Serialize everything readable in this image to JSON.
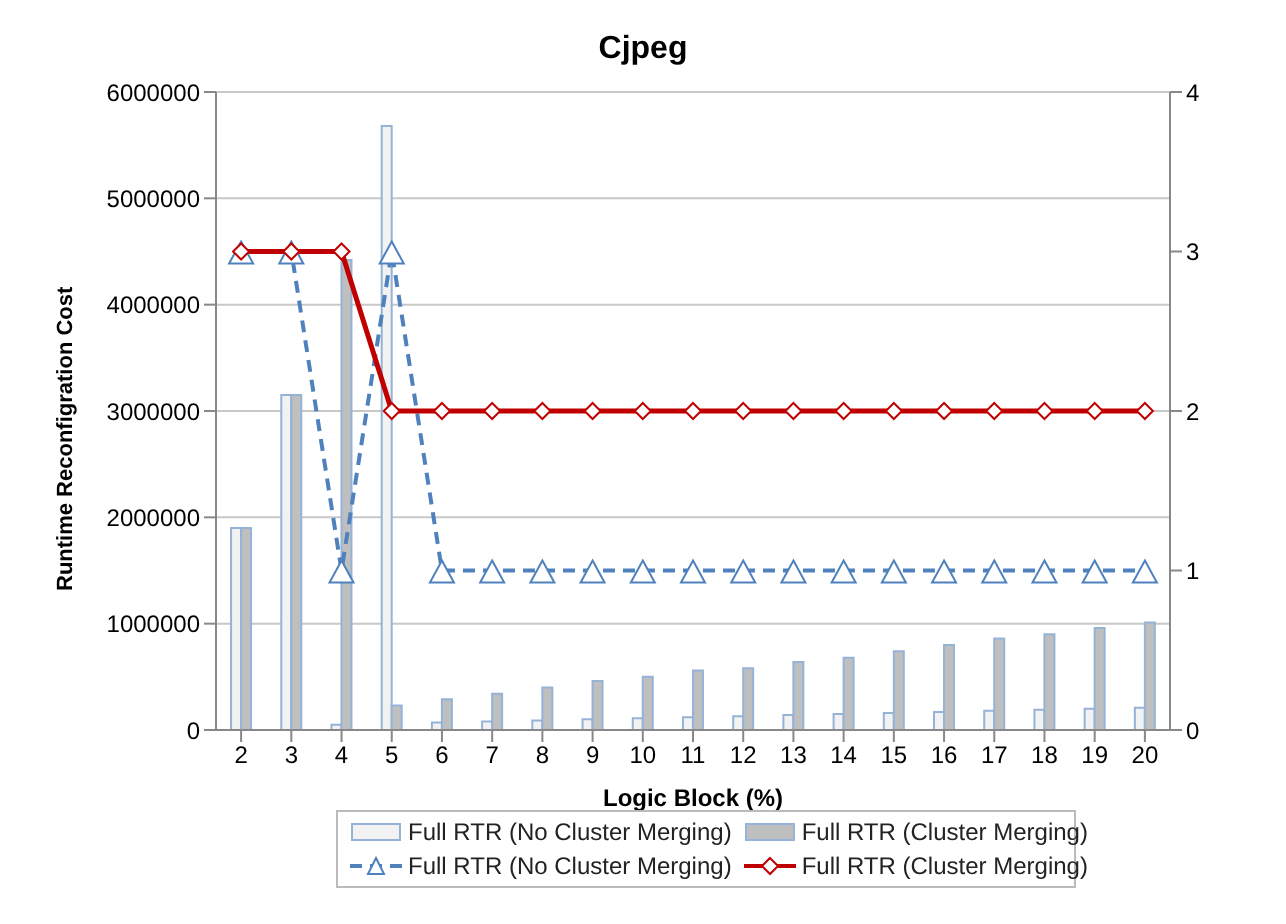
{
  "chart_data": {
    "type": "bar",
    "title": "Cjpeg",
    "xlabel": "Logic Block (%)",
    "ylabel": "Runtime Reconfigration Cost",
    "categories": [
      "2",
      "3",
      "4",
      "5",
      "6",
      "7",
      "8",
      "9",
      "10",
      "11",
      "12",
      "13",
      "14",
      "15",
      "16",
      "17",
      "18",
      "19",
      "20"
    ],
    "series": [
      {
        "name": "Full RTR (No Cluster Merging)",
        "color": "#f2f2f2",
        "values": [
          1900000,
          3150000,
          50000,
          5680000,
          70000,
          80000,
          90000,
          100000,
          110000,
          120000,
          130000,
          140000,
          150000,
          160000,
          170000,
          180000,
          190000,
          200000,
          210000
        ]
      },
      {
        "name": "Full RTR (Cluster Merging)",
        "color": "#bfbfbf",
        "values": [
          1900000,
          3150000,
          4420000,
          230000,
          290000,
          340000,
          400000,
          460000,
          500000,
          560000,
          580000,
          640000,
          680000,
          740000,
          800000,
          860000,
          900000,
          960000,
          1010000
        ]
      },
      {
        "name": "Full RTR (No Cluster Merging)",
        "type": "line",
        "axis": "y2",
        "color": "#4f81bd",
        "marker": "triangle",
        "line_style": "dashed",
        "values": [
          3,
          3,
          1,
          3,
          1,
          1,
          1,
          1,
          1,
          1,
          1,
          1,
          1,
          1,
          1,
          1,
          1,
          1,
          1
        ]
      },
      {
        "name": "Full RTR (Cluster Merging)",
        "type": "line",
        "axis": "y2",
        "color": "#c00000",
        "marker": "diamond",
        "line_style": "solid",
        "values": [
          3,
          3,
          3,
          2,
          2,
          2,
          2,
          2,
          2,
          2,
          2,
          2,
          2,
          2,
          2,
          2,
          2,
          2,
          2
        ]
      }
    ],
    "ylim": [
      0,
      6000000
    ],
    "yticks": [
      0,
      1000000,
      2000000,
      3000000,
      4000000,
      5000000,
      6000000
    ],
    "y2lim": [
      0,
      4
    ],
    "y2ticks": [
      0,
      1,
      2,
      3,
      4
    ],
    "grid": "y",
    "legend": "bottom"
  }
}
